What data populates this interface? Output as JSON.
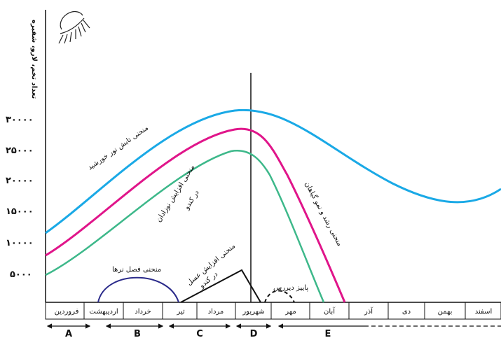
{
  "y_axis_title": "تعداد تخم، لارو، شفیره",
  "y_ticks": [
    "۳۰۰۰۰",
    "۲۵۰۰۰",
    "۲۰۰۰۰",
    "۱۵۰۰۰",
    "۱۰۰۰۰",
    "۵۰۰۰"
  ],
  "months": [
    "فروردین",
    "اردیبهشت",
    "خرداد",
    "تیر",
    "مرداد",
    "شهریور",
    "مهر",
    "آبان",
    "آذر",
    "دی",
    "بهمن",
    "اسفند"
  ],
  "periods": [
    "A",
    "B",
    "C",
    "D",
    "E"
  ],
  "curve_labels": {
    "sunlight": "منحنی تابش نور خورشید",
    "plant_growth": "منحنی رشد و نمو گیاهان",
    "brood": "منحنی افزایش نوزادان",
    "brood_sub": "در کندو",
    "drones": "منحنی فصل نرها",
    "honey": "منحنی افزایش عسل",
    "honey_sub": "در کندو",
    "late_autumn": "پاییز دیررس"
  },
  "colors": {
    "sunlight": "#1aa9e6",
    "plant_growth": "#e0158a",
    "brood": "#3db88a",
    "drones": "#2a2a8a",
    "honey": "#111111"
  },
  "icons": [
    "sun-icon"
  ]
}
